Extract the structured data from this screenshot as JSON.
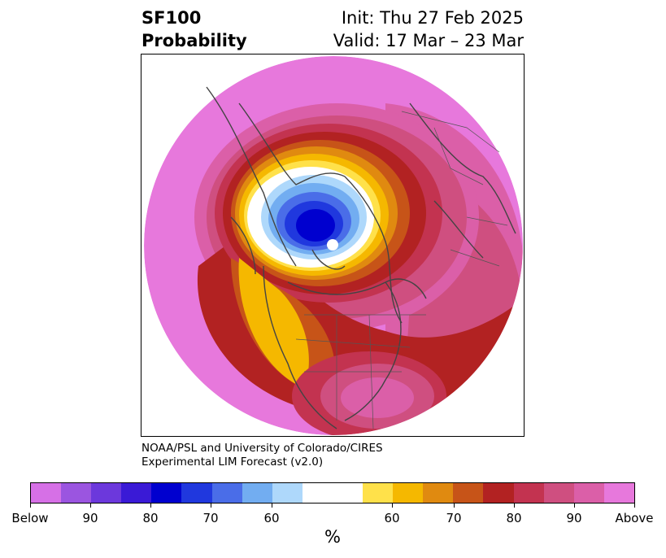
{
  "header": {
    "title_line1": "SF100",
    "title_line2": "Probability",
    "init": "Init: Thu 27 Feb 2025",
    "valid": "Valid: 17 Mar – 23 Mar"
  },
  "credit": {
    "line1": "NOAA/PSL and University of Colorado/CIRES",
    "line2": "Experimental LIM Forecast (v2.0)"
  },
  "colorbar": {
    "colors": [
      "#d670e6",
      "#9b55e0",
      "#6c38dc",
      "#3a1ad6",
      "#0000cf",
      "#2038de",
      "#4a6de8",
      "#72adf1",
      "#aed8fb",
      "#ffffff",
      "#ffe14a",
      "#f5b800",
      "#e08a10",
      "#c75418",
      "#b22222",
      "#c33350",
      "#cf4f80",
      "#db5fa8",
      "#e778dc"
    ],
    "tick_labels": [
      "Below",
      "90",
      "80",
      "70",
      "60",
      "60",
      "70",
      "80",
      "90",
      "Above"
    ],
    "unit": "%"
  },
  "map": {
    "projection": "north-polar-stereographic",
    "field_colors": {
      "above_high": "#e778dc",
      "above_mid": "#cf4f80",
      "above_low": "#b22222",
      "orange": "#e08a10",
      "yellow": "#f5b800",
      "light_yellow": "#ffe14a",
      "neutral": "#ffffff",
      "below_light": "#aed8fb",
      "below_mid": "#4a6de8",
      "below_high": "#0000cf"
    }
  }
}
